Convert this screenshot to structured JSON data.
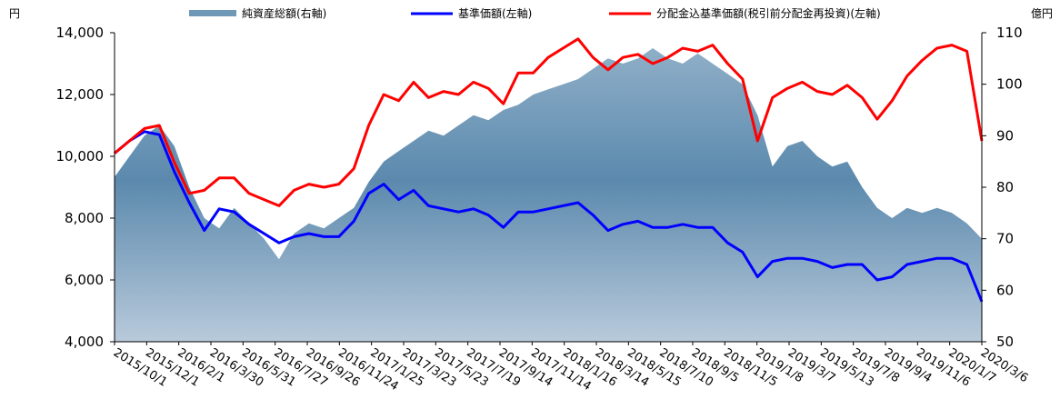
{
  "chart_data": {
    "type": "line",
    "units": {
      "left": "円",
      "right": "億円"
    },
    "legend": [
      {
        "name": "純資産総額(右軸)",
        "style": "area",
        "color": "#6f97b6"
      },
      {
        "name": "基準価額(左軸)",
        "style": "line",
        "color": "#0000ff"
      },
      {
        "name": "分配金込基準価額(税引前分配金再投資)(左軸)",
        "style": "line",
        "color": "#ff0000"
      }
    ],
    "y_left": {
      "min": 4000,
      "max": 14000,
      "ticks": [
        "4,000",
        "6,000",
        "8,000",
        "10,000",
        "12,000",
        "14,000"
      ]
    },
    "y_right": {
      "min": 50,
      "max": 110,
      "ticks": [
        "50",
        "60",
        "70",
        "80",
        "90",
        "100",
        "110"
      ]
    },
    "x_ticks": [
      "2015/10/1",
      "2015/12/1",
      "2016/2/1",
      "2016/3/30",
      "2016/5/31",
      "2016/7/27",
      "2016/9/26",
      "2016/11/24",
      "2017/1/25",
      "2017/3/23",
      "2017/5/23",
      "2017/7/19",
      "2017/9/14",
      "2017/11/14",
      "2018/1/16",
      "2018/3/14",
      "2018/5/15",
      "2018/7/10",
      "2018/9/5",
      "2018/11/5",
      "2019/1/8",
      "2019/3/7",
      "2019/5/13",
      "2019/7/8",
      "2019/9/4",
      "2019/11/6",
      "2020/1/7",
      "2020/3/6"
    ],
    "series": [
      {
        "name": "純資産総額(右軸)",
        "axis": "right",
        "type": "area",
        "values": [
          82,
          86,
          90,
          92,
          88,
          80,
          74,
          72,
          76,
          73,
          70,
          66,
          71,
          73,
          72,
          74,
          76,
          81,
          85,
          87,
          89,
          91,
          90,
          92,
          94,
          93,
          95,
          96,
          98,
          99,
          100,
          101,
          103,
          105,
          104,
          105,
          107,
          105,
          104,
          106,
          104,
          102,
          100,
          94,
          84,
          88,
          89,
          86,
          84,
          85,
          80,
          76,
          74,
          76,
          75,
          76,
          75,
          73,
          70
        ]
      },
      {
        "name": "基準価額(左軸)",
        "axis": "left",
        "type": "line",
        "values": [
          10100,
          10500,
          10800,
          10700,
          9500,
          8500,
          7600,
          8300,
          8200,
          7800,
          7500,
          7200,
          7400,
          7500,
          7400,
          7400,
          7900,
          8800,
          9100,
          8600,
          8900,
          8400,
          8300,
          8200,
          8300,
          8100,
          7700,
          8200,
          8200,
          8300,
          8400,
          8500,
          8100,
          7600,
          7800,
          7900,
          7700,
          7700,
          7800,
          7700,
          7700,
          7200,
          6900,
          6100,
          6600,
          6700,
          6700,
          6600,
          6400,
          6500,
          6500,
          6000,
          6100,
          6500,
          6600,
          6700,
          6700,
          6500,
          5300
        ]
      },
      {
        "name": "分配金込基準価額(税引前分配金再投資)(左軸)",
        "axis": "left",
        "type": "line",
        "values": [
          10100,
          10500,
          10900,
          11000,
          9800,
          8800,
          8900,
          9300,
          9300,
          8800,
          8600,
          8400,
          8900,
          9100,
          9000,
          9100,
          9600,
          11000,
          12000,
          11800,
          12400,
          11900,
          12100,
          12000,
          12400,
          12200,
          11700,
          12700,
          12700,
          13200,
          13500,
          13800,
          13200,
          12800,
          13200,
          13300,
          13000,
          13200,
          13500,
          13400,
          13600,
          13000,
          12500,
          10500,
          11900,
          12200,
          12400,
          12100,
          12000,
          12300,
          11900,
          11200,
          11800,
          12600,
          13100,
          13500,
          13600,
          13400,
          10500
        ]
      }
    ]
  }
}
